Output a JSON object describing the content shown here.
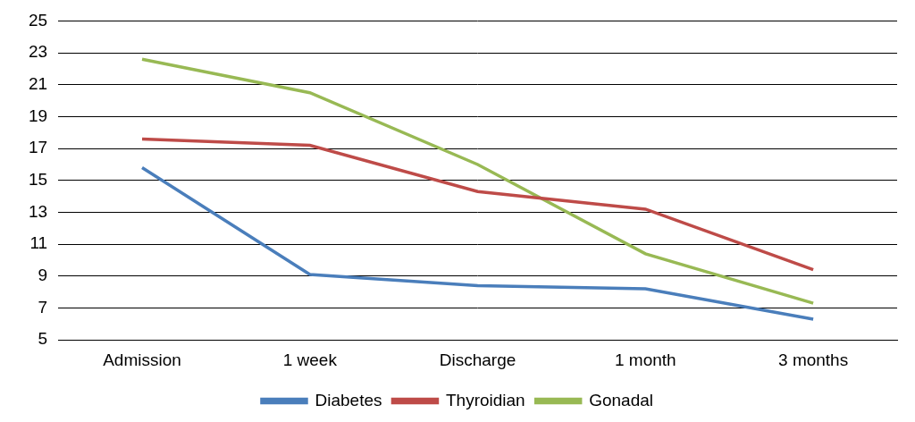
{
  "chart_data": {
    "type": "line",
    "categories": [
      "Admission",
      "1 week",
      "Discharge",
      "1 month",
      "3 months"
    ],
    "series": [
      {
        "name": "Diabetes",
        "color": "#4a7ebb",
        "values": [
          15.8,
          9.1,
          8.4,
          8.2,
          6.3
        ]
      },
      {
        "name": "Thyroidian",
        "color": "#be4b48",
        "values": [
          17.6,
          17.2,
          14.3,
          13.2,
          9.4
        ]
      },
      {
        "name": "Gonadal",
        "color": "#98b954",
        "values": [
          22.6,
          20.5,
          16.0,
          10.4,
          7.3
        ]
      }
    ],
    "ylim": [
      5,
      25
    ],
    "yticks": [
      5,
      7,
      9,
      11,
      13,
      15,
      17,
      19,
      21,
      23,
      25
    ],
    "grid": true,
    "legend": "bottom"
  }
}
